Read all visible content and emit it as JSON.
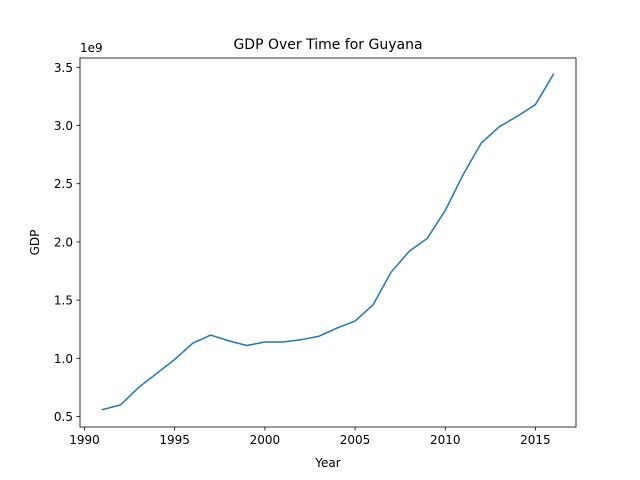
{
  "chart_data": {
    "type": "line",
    "title": "GDP Over Time for Guyana",
    "xlabel": "Year",
    "ylabel": "GDP",
    "y_offset_label": "1e9",
    "xlim": [
      1989.75,
      2017.25
    ],
    "ylim": [
      0.41,
      3.58
    ],
    "x_ticks": [
      1990,
      1995,
      2000,
      2005,
      2010,
      2015
    ],
    "x_tick_labels": [
      "1990",
      "1995",
      "2000",
      "2005",
      "2010",
      "2015"
    ],
    "y_ticks": [
      0.5,
      1.0,
      1.5,
      2.0,
      2.5,
      3.0,
      3.5
    ],
    "y_tick_labels": [
      "0.5",
      "1.0",
      "1.5",
      "2.0",
      "2.5",
      "3.0",
      "3.5"
    ],
    "grid": false,
    "line_color": "#1f77b4",
    "series": [
      {
        "x": [
          1991,
          1992,
          1993,
          1994,
          1995,
          1996,
          1997,
          1998,
          1999,
          2000,
          2001,
          2002,
          2003,
          2004,
          2005,
          2006,
          2007,
          2008,
          2009,
          2010,
          2011,
          2012,
          2013,
          2014,
          2015,
          2016
        ],
        "values": [
          0.56,
          0.6,
          0.75,
          0.87,
          0.99,
          1.13,
          1.2,
          1.15,
          1.11,
          1.14,
          1.14,
          1.16,
          1.19,
          1.26,
          1.32,
          1.46,
          1.74,
          1.92,
          2.03,
          2.27,
          2.58,
          2.85,
          2.99,
          3.08,
          3.18,
          3.44
        ]
      }
    ]
  }
}
